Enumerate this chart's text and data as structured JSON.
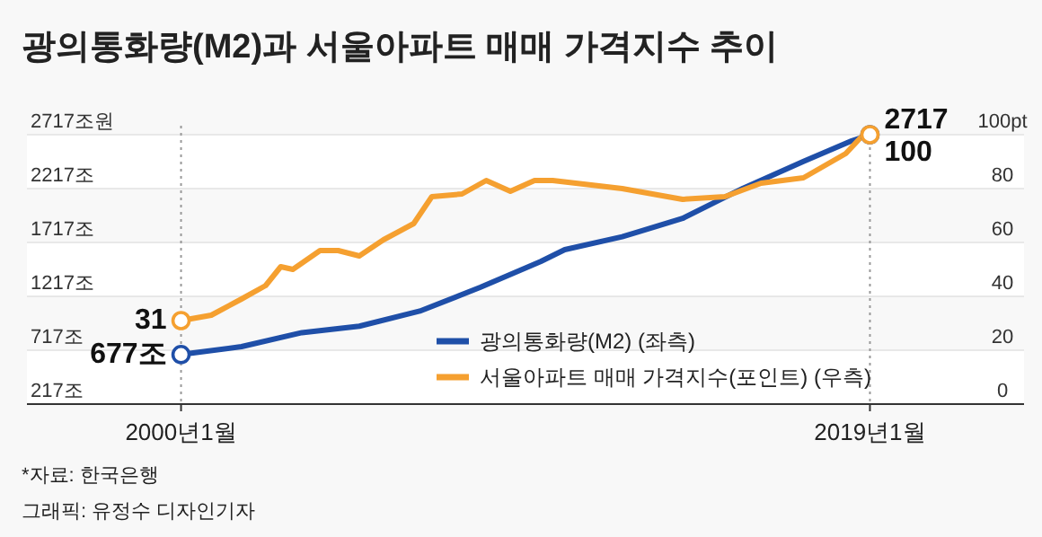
{
  "chart_data": {
    "type": "line",
    "title": "광의통화량(M2)과 서울아파트 매매 가격지수 추이",
    "annotations": [
      "*자료: 한국은행",
      "그래픽: 유정수 디자인기자"
    ],
    "xlim": [
      "1995-10",
      "2023-04"
    ],
    "xticks": [
      {
        "value": "2000-01",
        "label": "2000년1월"
      },
      {
        "value": "2019-01",
        "label": "2019년1월"
      }
    ],
    "ylim": [
      217,
      2717
    ],
    "yticks": [
      {
        "value": 217,
        "label": "217조"
      },
      {
        "value": 717,
        "label": "717조"
      },
      {
        "value": 1217,
        "label": "1217조"
      },
      {
        "value": 1717,
        "label": "1717조"
      },
      {
        "value": 2217,
        "label": "2217조"
      },
      {
        "value": 2717,
        "label": "2717조원"
      }
    ],
    "y2lim": [
      0,
      100
    ],
    "y2ticks": [
      0,
      20,
      40,
      60,
      80,
      {
        "value": 100,
        "label": "100pt"
      }
    ],
    "grid": "y",
    "legend": "bottom right",
    "line_style": "solid",
    "ref_lines": [
      {
        "axis": "x",
        "value": "2000-01",
        "label": null,
        "line_style": "dotted",
        "color": "#999999"
      },
      {
        "axis": "x",
        "value": "2019-01",
        "label": null,
        "line_style": "dotted",
        "color": "#999999"
      }
    ],
    "series": [
      {
        "name": "광의통화량(M2) (좌측)",
        "color": "#1f4fa8",
        "x": [
          "2000-01",
          "2001-09",
          "2003-05",
          "2004-12",
          "2006-08",
          "2008-04",
          "2009-12",
          "2010-08",
          "2012-03",
          "2013-11",
          "2015-07",
          "2017-03",
          "2018-07",
          "2019-01"
        ],
        "values": [
          677,
          750,
          880,
          940,
          1080,
          1300,
          1540,
          1650,
          1770,
          1940,
          2220,
          2470,
          2660,
          2717
        ],
        "value_labels": [
          "677조",
          null,
          null,
          null,
          null,
          null,
          null,
          null,
          null,
          null,
          null,
          null,
          null,
          "2717"
        ]
      },
      {
        "name": "서울아파트 매매 가격지수(포인트) (우측)",
        "color": "#f5a030",
        "axis": "y2",
        "x": [
          "2000-01",
          "2000-11",
          "2001-09",
          "2002-05",
          "2002-10",
          "2003-02",
          "2003-11",
          "2004-05",
          "2004-12",
          "2005-08",
          "2006-06",
          "2006-12",
          "2007-10",
          "2008-06",
          "2009-02",
          "2009-10",
          "2010-04",
          "2012-03",
          "2013-11",
          "2015-01",
          "2016-01",
          "2017-03",
          "2018-05",
          "2018-10",
          "2019-01"
        ],
        "values": [
          31,
          33,
          39,
          44,
          51,
          50,
          57,
          57,
          55,
          61,
          67,
          77,
          78,
          83,
          79,
          83,
          83,
          80,
          76,
          77,
          82,
          84,
          93,
          99,
          100
        ],
        "value_labels": [
          "31",
          null,
          null,
          null,
          null,
          null,
          null,
          null,
          null,
          null,
          null,
          null,
          null,
          null,
          null,
          null,
          null,
          null,
          null,
          null,
          null,
          null,
          null,
          null,
          "100"
        ]
      }
    ]
  }
}
